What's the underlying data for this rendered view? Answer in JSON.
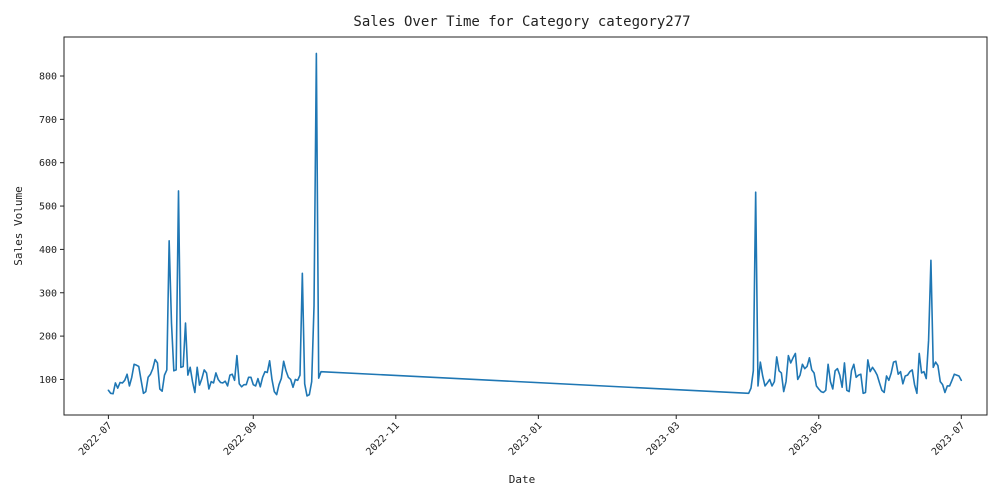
{
  "chart_data": {
    "type": "line",
    "title": "Sales Over Time for Category category277",
    "xlabel": "Date",
    "ylabel": "Sales Volume",
    "xlim": [
      "2022-06-12",
      "2023-07-12"
    ],
    "ylim": [
      18,
      890
    ],
    "x_ticks": [
      "2022-07",
      "2022-09",
      "2022-11",
      "2023-01",
      "2023-03",
      "2023-05",
      "2023-07"
    ],
    "y_ticks": [
      100,
      200,
      300,
      400,
      500,
      600,
      700,
      800
    ],
    "grid": false,
    "legend": "none",
    "colors": {
      "line": "#1f77b4",
      "axis": "#222222",
      "background": "#ffffff"
    },
    "series": [
      {
        "points": [
          [
            "2022-07-01",
            75
          ],
          [
            "2022-07-02",
            68
          ],
          [
            "2022-07-03",
            67
          ],
          [
            "2022-07-04",
            92
          ],
          [
            "2022-07-05",
            80
          ],
          [
            "2022-07-06",
            93
          ],
          [
            "2022-07-07",
            92
          ],
          [
            "2022-07-08",
            98
          ],
          [
            "2022-07-09",
            112
          ],
          [
            "2022-07-10",
            85
          ],
          [
            "2022-07-11",
            105
          ],
          [
            "2022-07-12",
            135
          ],
          [
            "2022-07-13",
            133
          ],
          [
            "2022-07-14",
            130
          ],
          [
            "2022-07-15",
            98
          ],
          [
            "2022-07-16",
            68
          ],
          [
            "2022-07-17",
            72
          ],
          [
            "2022-07-18",
            105
          ],
          [
            "2022-07-19",
            112
          ],
          [
            "2022-07-20",
            125
          ],
          [
            "2022-07-21",
            146
          ],
          [
            "2022-07-22",
            138
          ],
          [
            "2022-07-23",
            78
          ],
          [
            "2022-07-24",
            73
          ],
          [
            "2022-07-25",
            110
          ],
          [
            "2022-07-26",
            122
          ],
          [
            "2022-07-27",
            420
          ],
          [
            "2022-07-28",
            230
          ],
          [
            "2022-07-29",
            120
          ],
          [
            "2022-07-30",
            122
          ],
          [
            "2022-07-31",
            535
          ],
          [
            "2022-08-01",
            128
          ],
          [
            "2022-08-02",
            130
          ],
          [
            "2022-08-03",
            230
          ],
          [
            "2022-08-04",
            110
          ],
          [
            "2022-08-05",
            128
          ],
          [
            "2022-08-06",
            95
          ],
          [
            "2022-08-07",
            70
          ],
          [
            "2022-08-08",
            128
          ],
          [
            "2022-08-09",
            87
          ],
          [
            "2022-08-10",
            102
          ],
          [
            "2022-08-11",
            122
          ],
          [
            "2022-08-12",
            115
          ],
          [
            "2022-08-13",
            78
          ],
          [
            "2022-08-14",
            95
          ],
          [
            "2022-08-15",
            92
          ],
          [
            "2022-08-16",
            115
          ],
          [
            "2022-08-17",
            100
          ],
          [
            "2022-08-18",
            93
          ],
          [
            "2022-08-19",
            92
          ],
          [
            "2022-08-20",
            96
          ],
          [
            "2022-08-21",
            85
          ],
          [
            "2022-08-22",
            110
          ],
          [
            "2022-08-23",
            112
          ],
          [
            "2022-08-24",
            98
          ],
          [
            "2022-08-25",
            155
          ],
          [
            "2022-08-26",
            90
          ],
          [
            "2022-08-27",
            83
          ],
          [
            "2022-08-28",
            88
          ],
          [
            "2022-08-29",
            88
          ],
          [
            "2022-08-30",
            105
          ],
          [
            "2022-08-31",
            105
          ],
          [
            "2022-09-01",
            88
          ],
          [
            "2022-09-02",
            85
          ],
          [
            "2022-09-03",
            102
          ],
          [
            "2022-09-04",
            83
          ],
          [
            "2022-09-05",
            105
          ],
          [
            "2022-09-06",
            118
          ],
          [
            "2022-09-07",
            116
          ],
          [
            "2022-09-08",
            143
          ],
          [
            "2022-09-09",
            100
          ],
          [
            "2022-09-10",
            72
          ],
          [
            "2022-09-11",
            65
          ],
          [
            "2022-09-12",
            88
          ],
          [
            "2022-09-13",
            102
          ],
          [
            "2022-09-14",
            142
          ],
          [
            "2022-09-15",
            120
          ],
          [
            "2022-09-16",
            105
          ],
          [
            "2022-09-17",
            100
          ],
          [
            "2022-09-18",
            82
          ],
          [
            "2022-09-19",
            100
          ],
          [
            "2022-09-20",
            98
          ],
          [
            "2022-09-21",
            110
          ],
          [
            "2022-09-22",
            345
          ],
          [
            "2022-09-23",
            90
          ],
          [
            "2022-09-24",
            62
          ],
          [
            "2022-09-25",
            65
          ],
          [
            "2022-09-26",
            95
          ],
          [
            "2022-09-27",
            270
          ],
          [
            "2022-09-28",
            852
          ],
          [
            "2022-09-29",
            103
          ],
          [
            "2022-09-30",
            118
          ],
          [
            "2023-04-01",
            68
          ],
          [
            "2023-04-02",
            80
          ],
          [
            "2023-04-03",
            120
          ],
          [
            "2023-04-04",
            532
          ],
          [
            "2023-04-05",
            85
          ],
          [
            "2023-04-06",
            140
          ],
          [
            "2023-04-07",
            108
          ],
          [
            "2023-04-08",
            85
          ],
          [
            "2023-04-09",
            92
          ],
          [
            "2023-04-10",
            100
          ],
          [
            "2023-04-11",
            85
          ],
          [
            "2023-04-12",
            95
          ],
          [
            "2023-04-13",
            152
          ],
          [
            "2023-04-14",
            120
          ],
          [
            "2023-04-15",
            115
          ],
          [
            "2023-04-16",
            72
          ],
          [
            "2023-04-17",
            95
          ],
          [
            "2023-04-18",
            155
          ],
          [
            "2023-04-19",
            138
          ],
          [
            "2023-04-20",
            150
          ],
          [
            "2023-04-21",
            160
          ],
          [
            "2023-04-22",
            100
          ],
          [
            "2023-04-23",
            110
          ],
          [
            "2023-04-24",
            135
          ],
          [
            "2023-04-25",
            125
          ],
          [
            "2023-04-26",
            130
          ],
          [
            "2023-04-27",
            150
          ],
          [
            "2023-04-28",
            122
          ],
          [
            "2023-04-29",
            115
          ],
          [
            "2023-04-30",
            85
          ],
          [
            "2023-05-01",
            78
          ],
          [
            "2023-05-02",
            72
          ],
          [
            "2023-05-03",
            70
          ],
          [
            "2023-05-04",
            75
          ],
          [
            "2023-05-05",
            135
          ],
          [
            "2023-05-06",
            95
          ],
          [
            "2023-05-07",
            78
          ],
          [
            "2023-05-08",
            120
          ],
          [
            "2023-05-09",
            125
          ],
          [
            "2023-05-10",
            110
          ],
          [
            "2023-05-11",
            82
          ],
          [
            "2023-05-12",
            138
          ],
          [
            "2023-05-13",
            75
          ],
          [
            "2023-05-14",
            72
          ],
          [
            "2023-05-15",
            120
          ],
          [
            "2023-05-16",
            135
          ],
          [
            "2023-05-17",
            105
          ],
          [
            "2023-05-18",
            110
          ],
          [
            "2023-05-19",
            112
          ],
          [
            "2023-05-20",
            68
          ],
          [
            "2023-05-21",
            70
          ],
          [
            "2023-05-22",
            145
          ],
          [
            "2023-05-23",
            118
          ],
          [
            "2023-05-24",
            128
          ],
          [
            "2023-05-25",
            120
          ],
          [
            "2023-05-26",
            110
          ],
          [
            "2023-05-27",
            92
          ],
          [
            "2023-05-28",
            75
          ],
          [
            "2023-05-29",
            70
          ],
          [
            "2023-05-30",
            108
          ],
          [
            "2023-05-31",
            98
          ],
          [
            "2023-06-01",
            115
          ],
          [
            "2023-06-02",
            140
          ],
          [
            "2023-06-03",
            142
          ],
          [
            "2023-06-04",
            112
          ],
          [
            "2023-06-05",
            118
          ],
          [
            "2023-06-06",
            90
          ],
          [
            "2023-06-07",
            108
          ],
          [
            "2023-06-08",
            110
          ],
          [
            "2023-06-09",
            118
          ],
          [
            "2023-06-10",
            122
          ],
          [
            "2023-06-11",
            88
          ],
          [
            "2023-06-12",
            68
          ],
          [
            "2023-06-13",
            160
          ],
          [
            "2023-06-14",
            115
          ],
          [
            "2023-06-15",
            118
          ],
          [
            "2023-06-16",
            102
          ],
          [
            "2023-06-17",
            190
          ],
          [
            "2023-06-18",
            375
          ],
          [
            "2023-06-19",
            128
          ],
          [
            "2023-06-20",
            140
          ],
          [
            "2023-06-21",
            132
          ],
          [
            "2023-06-22",
            95
          ],
          [
            "2023-06-23",
            88
          ],
          [
            "2023-06-24",
            70
          ],
          [
            "2023-06-25",
            85
          ],
          [
            "2023-06-26",
            85
          ],
          [
            "2023-06-27",
            98
          ],
          [
            "2023-06-28",
            112
          ],
          [
            "2023-06-29",
            110
          ],
          [
            "2023-06-30",
            108
          ],
          [
            "2023-07-01",
            98
          ]
        ]
      }
    ]
  }
}
